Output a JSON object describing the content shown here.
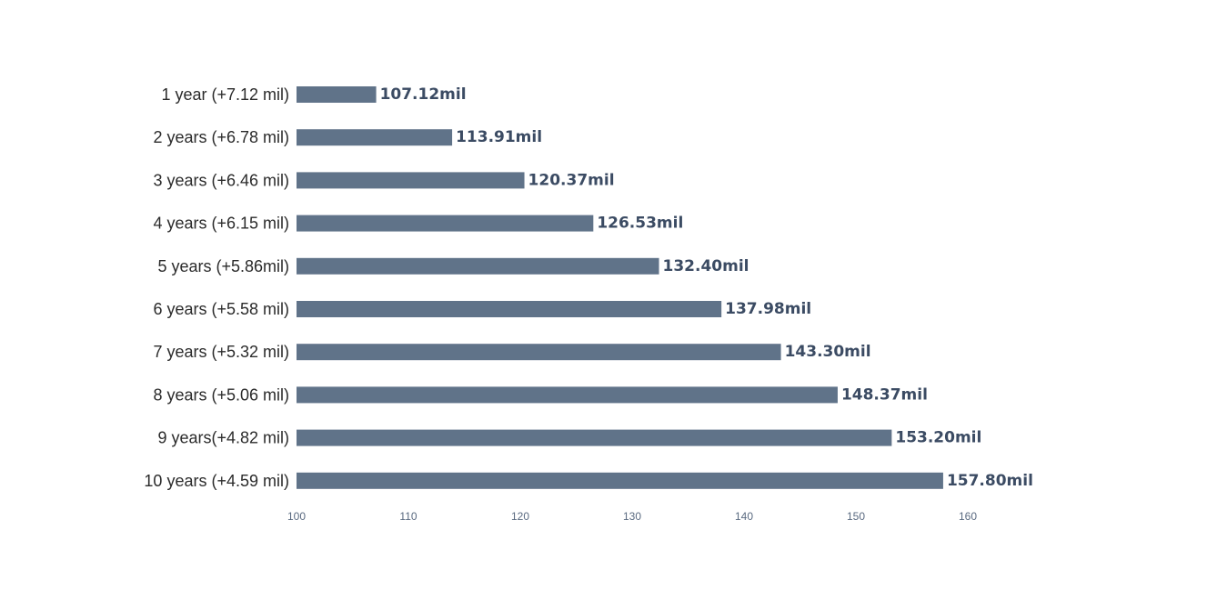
{
  "chart_data": {
    "type": "bar",
    "orientation": "horizontal",
    "title": "",
    "xlabel": "",
    "ylabel": "",
    "categories": [
      "1 year (+7.12 mil)",
      "2 years (+6.78 mil)",
      "3 years (+6.46 mil)",
      "4 years (+6.15 mil)",
      "5 years (+5.86mil)",
      "6 years (+5.58 mil)",
      "7 years (+5.32 mil)",
      "8 years (+5.06 mil)",
      "9 years(+4.82 mil)",
      "10 years (+4.59 mil)"
    ],
    "values": [
      107.12,
      113.91,
      120.37,
      126.53,
      132.4,
      137.98,
      143.3,
      148.37,
      153.2,
      157.8
    ],
    "value_labels": [
      "107.12mil",
      "113.91mil",
      "120.37mil",
      "126.53mil",
      "132.40mil",
      "137.98mil",
      "143.30mil",
      "148.37mil",
      "153.20mil",
      "157.80mil"
    ],
    "xlim": [
      100,
      160
    ],
    "xticks": [
      "100",
      "110",
      "120",
      "130",
      "140",
      "150",
      "160"
    ],
    "grid": false,
    "legend": "none",
    "bar_color": "#607389"
  }
}
